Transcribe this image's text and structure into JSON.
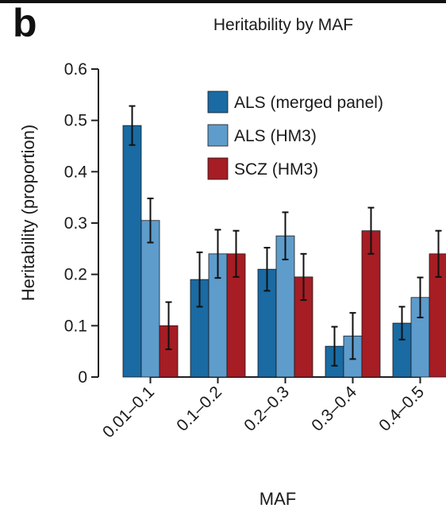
{
  "panel_label": "b",
  "chart_data": {
    "type": "bar",
    "title": "Heritability by MAF",
    "xlabel": "MAF",
    "ylabel": "Heritability (proportion)",
    "ylim": [
      0,
      0.6
    ],
    "yticks": [
      "0",
      "0.1",
      "0.2",
      "0.3",
      "0.4",
      "0.5",
      "0.6"
    ],
    "categories": [
      "0.01–0.1",
      "0.1–0.2",
      "0.2–0.3",
      "0.3–0.4",
      "0.4–0.5"
    ],
    "legend_position": "top-right",
    "series": [
      {
        "name": "ALS (merged panel)",
        "color": "#1a6aa3",
        "values": [
          0.49,
          0.19,
          0.21,
          0.06,
          0.105
        ],
        "errors": [
          0.038,
          0.053,
          0.042,
          0.038,
          0.032
        ]
      },
      {
        "name": "ALS (HM3)",
        "color": "#5e9ccc",
        "values": [
          0.305,
          0.24,
          0.275,
          0.08,
          0.155
        ],
        "errors": [
          0.043,
          0.047,
          0.046,
          0.045,
          0.039
        ]
      },
      {
        "name": "SCZ (HM3)",
        "color": "#a61d24",
        "values": [
          0.1,
          0.24,
          0.195,
          0.285,
          0.24
        ],
        "errors": [
          0.046,
          0.045,
          0.045,
          0.045,
          0.045
        ]
      }
    ]
  }
}
